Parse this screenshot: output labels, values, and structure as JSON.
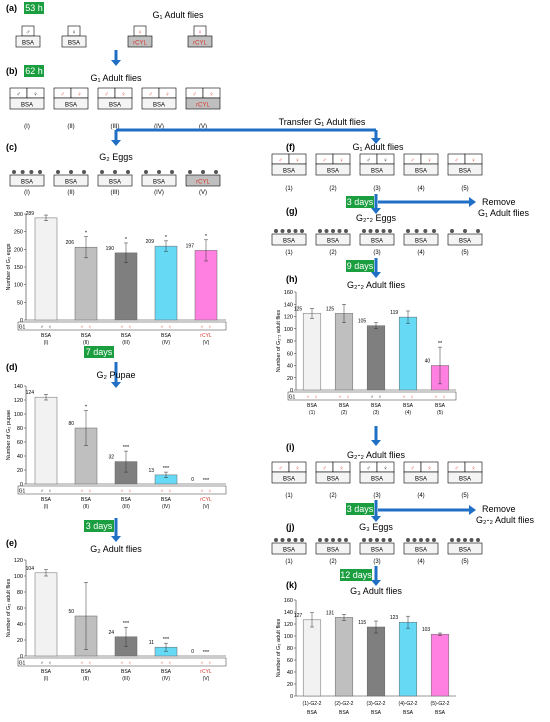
{
  "colors": {
    "red": "#d9342b",
    "blue_arrow": "#1f6fc4",
    "green_badge": "#1a9e3f",
    "gray_fill": "#bfbfbf",
    "bars": [
      "#f2f2f2",
      "#bfbfbf",
      "#7f7f7f",
      "#66d9f5",
      "#ff80e0"
    ]
  },
  "symbols": {
    "male": "♂",
    "female": "♀",
    "g1": "G1"
  },
  "panels": {
    "a": {
      "label": "(a)",
      "badge": "53 h",
      "title": "G₁ Adult flies",
      "boxes": [
        "BSA",
        "BSA",
        "rCYL",
        "rCYL"
      ]
    },
    "b": {
      "label": "(b)",
      "badge": "62 h",
      "title": "G₁ Adult flies",
      "boxes": [
        "BSA",
        "BSA",
        "BSA",
        "BSA",
        "rCYL"
      ],
      "roman": [
        "(I)",
        "(II)",
        "(III)",
        "(IV)",
        "(V)"
      ]
    },
    "c": {
      "label": "(c)",
      "title": "G₂ Eggs",
      "boxes": [
        "BSA",
        "BSA",
        "BSA",
        "BSA",
        "rCYL"
      ],
      "roman": [
        "(I)",
        "(II)",
        "(III)",
        "(IV)",
        "(V)"
      ]
    },
    "transfer": "Transfer G₁ Adult flies",
    "d": {
      "label": "(d)",
      "badge": "7 days",
      "title": "G₂ Pupae"
    },
    "e": {
      "label": "(e)",
      "badge": "3 days",
      "title": "G₂ Adult flies"
    },
    "f": {
      "label": "(f)",
      "title": "G₁ Adult flies",
      "boxes": [
        "BSA",
        "BSA",
        "BSA",
        "BSA",
        "BSA"
      ],
      "nums": [
        "(1)",
        "(2)",
        "(3)",
        "(4)",
        "(5)"
      ]
    },
    "remove1": {
      "badge": "3 days",
      "text1": "Remove",
      "text2": "G₁ Adult flies"
    },
    "g": {
      "label": "(g)",
      "title": "G₂-₂ Eggs",
      "boxes": [
        "BSA",
        "BSA",
        "BSA",
        "BSA",
        "BSA"
      ],
      "nums": [
        "(1)",
        "(2)",
        "(3)",
        "(4)",
        "(5)"
      ]
    },
    "h": {
      "label": "(h)",
      "badge": "9 days",
      "title": "G₂-₂ Adult flies"
    },
    "i": {
      "label": "(i)",
      "title": "G₂-₂ Adult flies",
      "boxes": [
        "BSA",
        "BSA",
        "BSA",
        "BSA",
        "BSA"
      ],
      "nums": [
        "(1)",
        "(2)",
        "(3)",
        "(4)",
        "(5)"
      ]
    },
    "remove2": {
      "badge": "3 days",
      "text1": "Remove",
      "text2": "G₂-₂ Adult flies"
    },
    "j": {
      "label": "(j)",
      "title": "G₃ Eggs",
      "boxes": [
        "BSA",
        "BSA",
        "BSA",
        "BSA",
        "BSA"
      ],
      "nums": [
        "(1)",
        "(2)",
        "(3)",
        "(4)",
        "(5)"
      ]
    },
    "k": {
      "label": "(k)",
      "badge": "12 days",
      "title": "G₃ Adult flies"
    }
  },
  "chart_data": [
    {
      "id": "c",
      "type": "bar",
      "title": "G₂ Eggs",
      "ylabel": "Number of G₂ eggs",
      "ylim": [
        0,
        300
      ],
      "yticks": [
        0,
        50,
        100,
        150,
        200,
        250,
        300
      ],
      "values": [
        289,
        206,
        190,
        209,
        197
      ],
      "errors": [
        8,
        30,
        28,
        15,
        30
      ],
      "stars": [
        "",
        "*",
        "*",
        "*",
        "*"
      ],
      "box": [
        "BSA",
        "BSA",
        "BSA",
        "BSA",
        "rCYL"
      ],
      "roman": [
        "(I)",
        "(II)",
        "(III)",
        "(IV)",
        "(V)"
      ]
    },
    {
      "id": "d",
      "type": "bar",
      "title": "G₂ Pupae",
      "ylabel": "Number of G₂ pupae",
      "ylim": [
        0,
        140
      ],
      "yticks": [
        0,
        20,
        40,
        60,
        80,
        100,
        120,
        140
      ],
      "values": [
        124,
        80,
        32,
        13,
        0
      ],
      "errors": [
        4,
        25,
        15,
        4,
        0
      ],
      "stars": [
        "",
        "*",
        "***",
        "***",
        "***"
      ],
      "box": [
        "BSA",
        "BSA",
        "BSA",
        "BSA",
        "rCYL"
      ],
      "roman": [
        "(I)",
        "(II)",
        "(III)",
        "(IV)",
        "(V)"
      ]
    },
    {
      "id": "e",
      "type": "bar",
      "title": "G₂ Adult flies",
      "ylabel": "Number of G₂ adult flies",
      "ylim": [
        0,
        120
      ],
      "yticks": [
        0,
        20,
        40,
        60,
        80,
        100,
        120
      ],
      "values": [
        104,
        50,
        24,
        11,
        0
      ],
      "errors": [
        4,
        42,
        12,
        5,
        0
      ],
      "stars": [
        "",
        "",
        "***",
        "***",
        "***"
      ],
      "box": [
        "BSA",
        "BSA",
        "BSA",
        "BSA",
        "rCYL"
      ],
      "roman": [
        "(I)",
        "(II)",
        "(III)",
        "(IV)",
        "(V)"
      ]
    },
    {
      "id": "h",
      "type": "bar",
      "title": "G₂-₂ Adult flies",
      "ylabel": "Number of G₂-₂ adult flies",
      "ylim": [
        0,
        160
      ],
      "yticks": [
        0,
        20,
        40,
        60,
        80,
        100,
        120,
        140,
        160
      ],
      "values": [
        125,
        125,
        105,
        119,
        40
      ],
      "errors": [
        8,
        15,
        5,
        10,
        30
      ],
      "stars": [
        "",
        "",
        "",
        "",
        "**"
      ],
      "box": [
        "BSA",
        "BSA",
        "BSA",
        "BSA",
        "BSA"
      ],
      "roman": [
        "(1)",
        "(2)",
        "(3)",
        "(4)",
        "(5)"
      ]
    },
    {
      "id": "k",
      "type": "bar",
      "title": "G₃ Adult flies",
      "ylabel": "Number of G₃ adult flies",
      "ylim": [
        0,
        160
      ],
      "yticks": [
        0,
        20,
        40,
        60,
        80,
        100,
        120,
        140,
        160
      ],
      "values": [
        127,
        131,
        115,
        123,
        103
      ],
      "errors": [
        12,
        5,
        10,
        10,
        2
      ],
      "stars": [
        "",
        "",
        "",
        "",
        ""
      ],
      "xlabels": [
        "(1)-G2-2",
        "(2)-G2-2",
        "(3)-G2-2",
        "(4)-G2-2",
        "(5)-G2-2"
      ],
      "box": [
        "BSA",
        "BSA",
        "BSA",
        "BSA",
        "BSA"
      ]
    }
  ]
}
